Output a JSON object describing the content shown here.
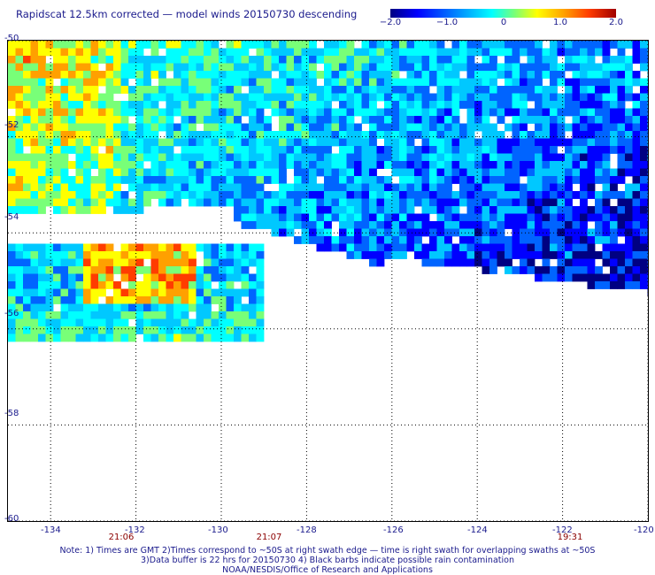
{
  "title": "Rapidscat 12.5km corrected — model winds 20150730 descending",
  "colorbar": {
    "ticks": [
      "−2.0",
      "−1.0",
      "0",
      "1.0",
      "2.0"
    ],
    "tick_values": [
      -2.0,
      -1.0,
      0,
      1.0,
      2.0
    ],
    "range": [
      -2.0,
      2.0
    ],
    "colors": [
      "#000082",
      "#0000ff",
      "#0064ff",
      "#00c8ff",
      "#00ffff",
      "#78ff78",
      "#ffff00",
      "#ffa000",
      "#ff3c00",
      "#a00000"
    ]
  },
  "map": {
    "lon_range": [
      -135,
      -120
    ],
    "lat_range": [
      -60,
      -50
    ],
    "lat_labels": [
      "-50",
      "-52",
      "-54",
      "-56",
      "-58",
      "-60"
    ],
    "lat_values": [
      -50,
      -52,
      -54,
      -56,
      -58,
      -60
    ],
    "lon_labels": [
      "-134",
      "-132",
      "-130",
      "-128",
      "-126",
      "-124",
      "-122",
      "-120"
    ],
    "lon_values": [
      -134,
      -132,
      -130,
      -128,
      -126,
      -124,
      -122,
      -120
    ],
    "grid": true,
    "time_labels": [
      {
        "text": "21:06",
        "lon": -132.3
      },
      {
        "text": "21:07",
        "lon": -128.8
      },
      {
        "text": "19:31",
        "lon": -121.8
      }
    ]
  },
  "notes": [
    "Note: 1) Times are GMT 2)Times correspond to ~50S at right swath edge — time is right swath for overlapping swaths at ~50S",
    "3)Data buffer is 22 hrs for 20150730 4) Black barbs indicate possible rain contamination",
    "NOAA/NESDIS/Office of Research and Applications"
  ]
}
